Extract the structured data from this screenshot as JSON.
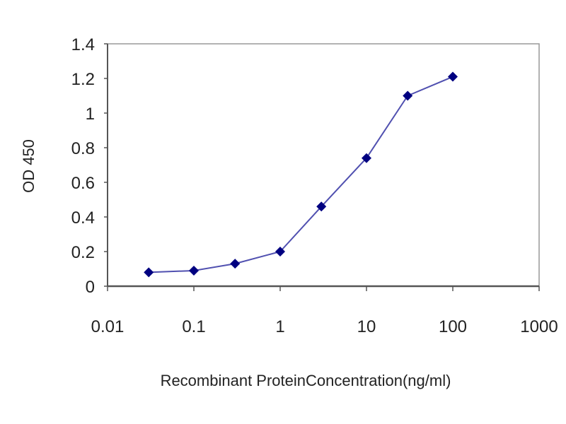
{
  "chart_data": {
    "type": "line",
    "title": "",
    "xlabel": "Recombinant ProteinConcentration(ng/ml)",
    "ylabel": "OD 450",
    "xscale": "log",
    "xlim": [
      0.01,
      1000
    ],
    "ylim": [
      0,
      1.4
    ],
    "xticks": [
      0.01,
      0.1,
      1,
      10,
      100,
      1000
    ],
    "xtick_labels": [
      "0.01",
      "0.1",
      "1",
      "10",
      "100",
      "1000"
    ],
    "yticks": [
      0,
      0.2,
      0.4,
      0.6,
      0.8,
      1,
      1.2,
      1.4
    ],
    "ytick_labels": [
      "0",
      "0.2",
      "0.4",
      "0.6",
      "0.8",
      "1",
      "1.2",
      "1.4"
    ],
    "grid": "horizontal",
    "legend": "none",
    "series": [
      {
        "x": [
          0.03,
          0.1,
          0.3,
          1,
          3,
          10,
          30,
          100
        ],
        "y": [
          0.08,
          0.09,
          0.13,
          0.2,
          0.46,
          0.74,
          1.1,
          1.21
        ],
        "marker": "diamond",
        "color": "#000080",
        "line_color": "#5050b0"
      }
    ]
  }
}
